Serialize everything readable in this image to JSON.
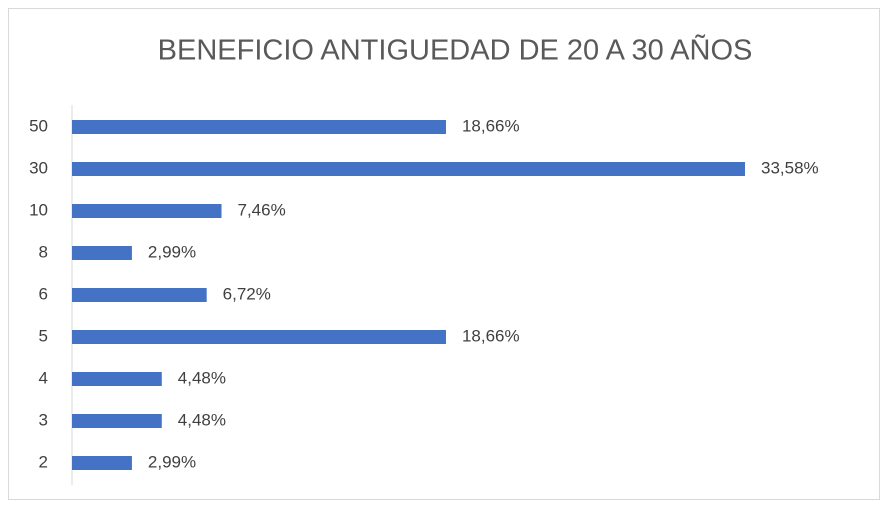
{
  "chart_data": {
    "type": "barh",
    "title": "BENEFICIO ANTIGUEDAD DE 20 A 30 AÑOS",
    "categories": [
      "50",
      "30",
      "10",
      "8",
      "6",
      "5",
      "4",
      "3",
      "2"
    ],
    "values": [
      18.66,
      33.58,
      7.46,
      2.99,
      6.72,
      18.66,
      4.48,
      4.48,
      2.99
    ],
    "value_labels": [
      "18,66%",
      "33,58%",
      "7,46%",
      "2,99%",
      "6,72%",
      "18,66%",
      "4,48%",
      "4,48%",
      "2,99%"
    ],
    "color": "#4472c4"
  }
}
